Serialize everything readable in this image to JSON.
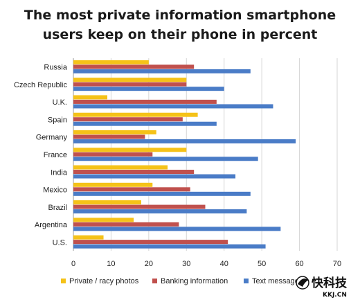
{
  "chart_data": {
    "type": "bar",
    "orientation": "horizontal",
    "title_lines": [
      "The most private information smartphone",
      "users keep on their phone in percent"
    ],
    "categories": [
      "Russia",
      "Czech Republic",
      "U.K.",
      "Spain",
      "Germany",
      "France",
      "India",
      "Mexico",
      "Brazil",
      "Argentina",
      "U.S."
    ],
    "series": [
      {
        "name": "Private / racy photos",
        "color": "#f5c218",
        "values": [
          20,
          30,
          9,
          33,
          22,
          30,
          25,
          21,
          18,
          16,
          8
        ]
      },
      {
        "name": "Banking information",
        "color": "#c0504d",
        "values": [
          32,
          30,
          38,
          29,
          19,
          21,
          32,
          31,
          35,
          28,
          41
        ]
      },
      {
        "name": "Text messages",
        "color": "#4a7cc7",
        "values": [
          47,
          40,
          53,
          38,
          59,
          49,
          43,
          47,
          46,
          55,
          51
        ]
      }
    ],
    "xlim": [
      0,
      70
    ],
    "xticks": [
      0,
      10,
      20,
      30,
      40,
      50,
      60,
      70
    ],
    "grid": true,
    "legend_position": "bottom"
  },
  "watermark": {
    "icon": "bird-logo-icon",
    "text": "快科技",
    "subtext": "KKJ.CN"
  }
}
